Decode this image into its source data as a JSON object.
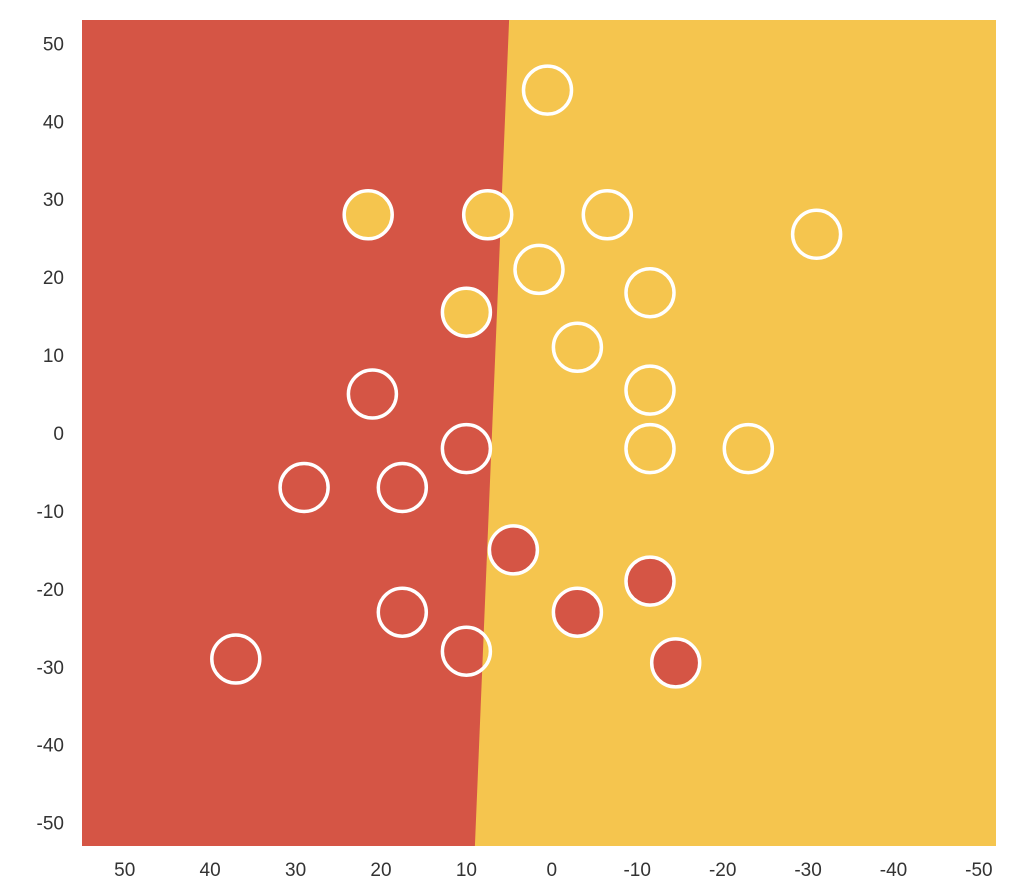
{
  "chart_data": {
    "type": "scatter",
    "title": "",
    "xlabel": "",
    "ylabel": "",
    "xlim": [
      55,
      -52
    ],
    "ylim": [
      -53,
      53
    ],
    "x_reversed": true,
    "grid": false,
    "x_ticks": [
      50,
      40,
      30,
      20,
      10,
      0,
      -10,
      -20,
      -30,
      -40,
      -50
    ],
    "y_ticks": [
      50,
      40,
      30,
      20,
      10,
      0,
      -10,
      -20,
      -30,
      -40,
      -50
    ],
    "decision_boundary": {
      "points": [
        [
          5,
          53
        ],
        [
          9,
          -53
        ]
      ],
      "left_region_color": "#d55545",
      "right_region_color": "#f5c54e"
    },
    "colors": {
      "red": "#d55545",
      "yellow": "#f5c54e",
      "ring": "#ffffff",
      "empty": "none"
    },
    "points": [
      {
        "x": 0.5,
        "y": 44,
        "fill": "empty"
      },
      {
        "x": 21.5,
        "y": 28,
        "fill": "yellow"
      },
      {
        "x": 7.5,
        "y": 28,
        "fill": "yellow"
      },
      {
        "x": -6.5,
        "y": 28,
        "fill": "empty"
      },
      {
        "x": -31,
        "y": 25.5,
        "fill": "empty"
      },
      {
        "x": 1.5,
        "y": 21,
        "fill": "empty"
      },
      {
        "x": -11.5,
        "y": 18,
        "fill": "empty"
      },
      {
        "x": 10,
        "y": 15.5,
        "fill": "yellow"
      },
      {
        "x": -3,
        "y": 11,
        "fill": "empty"
      },
      {
        "x": 21,
        "y": 5,
        "fill": "empty"
      },
      {
        "x": -11.5,
        "y": 5.5,
        "fill": "empty"
      },
      {
        "x": 10,
        "y": -2,
        "fill": "red"
      },
      {
        "x": -11.5,
        "y": -2,
        "fill": "empty"
      },
      {
        "x": -23,
        "y": -2,
        "fill": "empty"
      },
      {
        "x": 29,
        "y": -7,
        "fill": "empty"
      },
      {
        "x": 17.5,
        "y": -7,
        "fill": "empty"
      },
      {
        "x": 4.5,
        "y": -15,
        "fill": "red"
      },
      {
        "x": -11.5,
        "y": -19,
        "fill": "red"
      },
      {
        "x": 17.5,
        "y": -23,
        "fill": "empty"
      },
      {
        "x": -3,
        "y": -23,
        "fill": "red"
      },
      {
        "x": 10,
        "y": -28,
        "fill": "empty"
      },
      {
        "x": 37,
        "y": -29,
        "fill": "empty"
      },
      {
        "x": -14.5,
        "y": -29.5,
        "fill": "red"
      }
    ]
  }
}
